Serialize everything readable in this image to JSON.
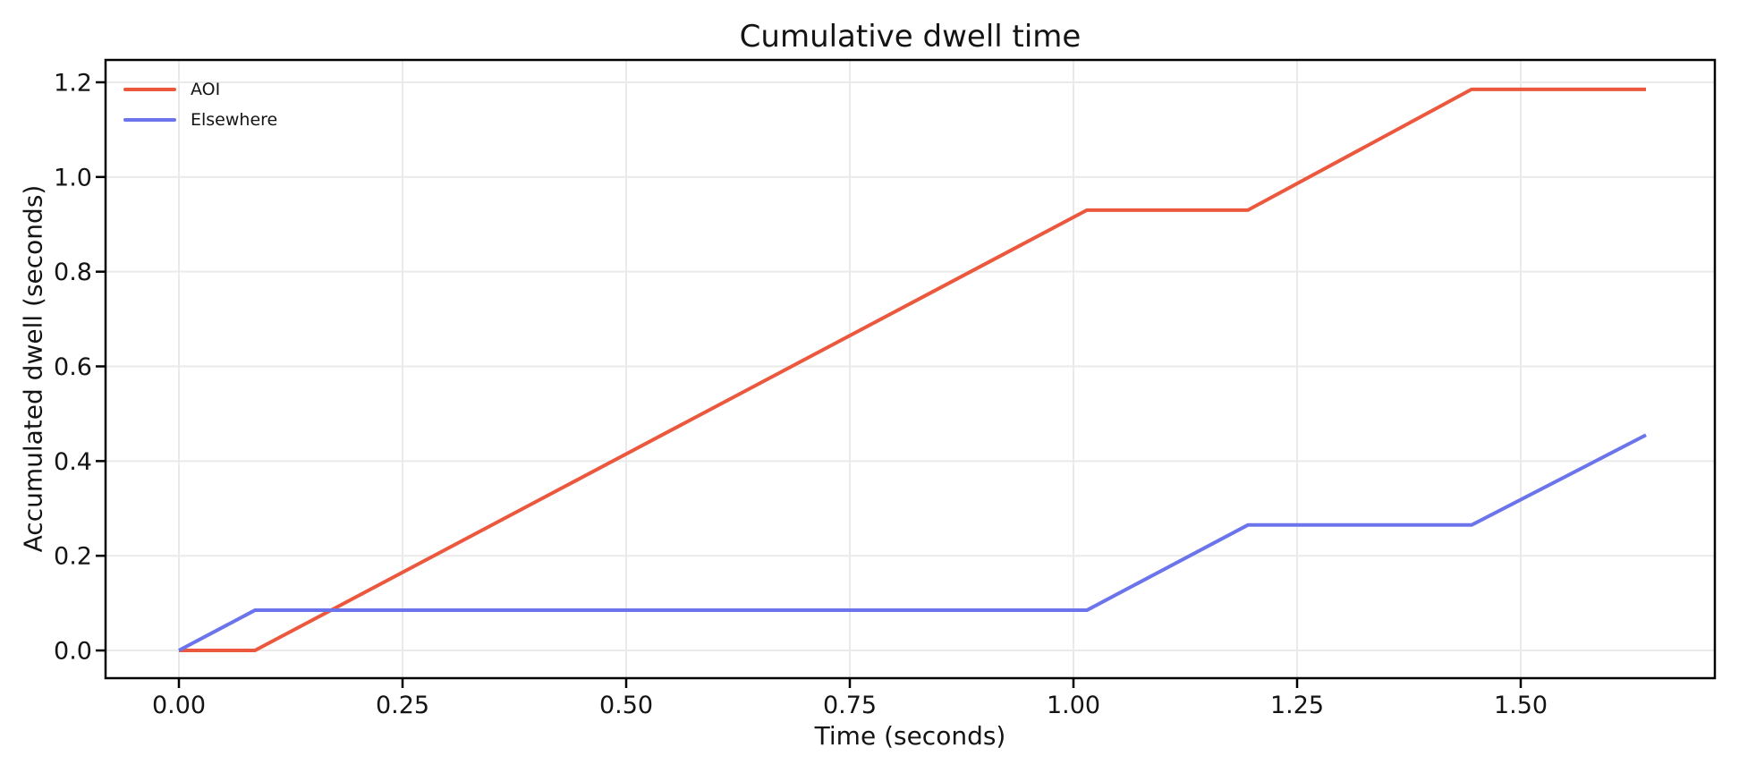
{
  "chart_data": {
    "type": "line",
    "title": "Cumulative dwell time",
    "xlabel": "Time (seconds)",
    "ylabel": "Accumulated dwell (seconds)",
    "xlim": [
      -0.082,
      1.717
    ],
    "ylim": [
      -0.0585,
      1.2472
    ],
    "grid": true,
    "legend_position": "upper-left",
    "x": [
      0.0,
      0.085,
      1.015,
      1.195,
      1.445,
      1.64
    ],
    "series": [
      {
        "name": "AOI",
        "color": "#eb583e",
        "values": [
          0.0,
          0.0,
          0.93,
          0.93,
          1.185,
          1.185
        ]
      },
      {
        "name": "Elsewhere",
        "color": "#6b74ea",
        "values": [
          0.0,
          0.085,
          0.085,
          0.265,
          0.265,
          0.455
        ]
      }
    ],
    "xticks": {
      "values": [
        0.0,
        0.25,
        0.5,
        0.75,
        1.0,
        1.25,
        1.5
      ],
      "labels": [
        "0.00",
        "0.25",
        "0.50",
        "0.75",
        "1.00",
        "1.25",
        "1.50"
      ]
    },
    "yticks": {
      "values": [
        0.0,
        0.2,
        0.4,
        0.6,
        0.8,
        1.0,
        1.2
      ],
      "labels": [
        "0.0",
        "0.2",
        "0.4",
        "0.6",
        "0.8",
        "1.0",
        "1.2"
      ]
    },
    "style": {
      "grid_color": "#eaeaea",
      "spine_color": "#000000",
      "text_color": "#141414",
      "line_width": 4,
      "background": "#ffffff"
    }
  }
}
